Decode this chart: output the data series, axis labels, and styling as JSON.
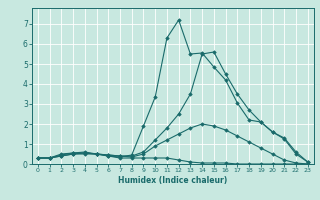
{
  "title": "",
  "xlabel": "Humidex (Indice chaleur)",
  "ylabel": "",
  "bg_color": "#c8e8e0",
  "line_color": "#1a6b6b",
  "grid_color": "#ffffff",
  "xlim": [
    -0.5,
    23.5
  ],
  "ylim": [
    0,
    7.8
  ],
  "xticks": [
    0,
    1,
    2,
    3,
    4,
    5,
    6,
    7,
    8,
    9,
    10,
    11,
    12,
    13,
    14,
    15,
    16,
    17,
    18,
    19,
    20,
    21,
    22,
    23
  ],
  "yticks": [
    0,
    1,
    2,
    3,
    4,
    5,
    6,
    7
  ],
  "lines": [
    {
      "x": [
        0,
        1,
        2,
        3,
        4,
        5,
        6,
        7,
        8,
        9,
        10,
        11,
        12,
        13,
        14,
        15,
        16,
        17,
        18,
        19,
        20,
        21,
        22,
        23
      ],
      "y": [
        0.3,
        0.3,
        0.4,
        0.5,
        0.5,
        0.5,
        0.4,
        0.3,
        0.3,
        0.3,
        0.3,
        0.3,
        0.2,
        0.1,
        0.05,
        0.05,
        0.05,
        0.0,
        0.0,
        0.0,
        0.0,
        0.0,
        0.0,
        0.0
      ]
    },
    {
      "x": [
        0,
        1,
        2,
        3,
        4,
        5,
        6,
        7,
        8,
        9,
        10,
        11,
        12,
        13,
        14,
        15,
        16,
        17,
        18,
        19,
        20,
        21,
        22,
        23
      ],
      "y": [
        0.3,
        0.3,
        0.4,
        0.5,
        0.55,
        0.5,
        0.45,
        0.4,
        0.35,
        0.5,
        0.9,
        1.2,
        1.5,
        1.8,
        2.0,
        1.9,
        1.7,
        1.4,
        1.1,
        0.8,
        0.5,
        0.2,
        0.05,
        0.0
      ]
    },
    {
      "x": [
        0,
        1,
        2,
        3,
        4,
        5,
        6,
        7,
        8,
        9,
        10,
        11,
        12,
        13,
        14,
        15,
        16,
        17,
        18,
        19,
        20,
        21,
        22,
        23
      ],
      "y": [
        0.3,
        0.3,
        0.45,
        0.55,
        0.55,
        0.5,
        0.45,
        0.4,
        0.4,
        0.6,
        1.2,
        1.8,
        2.5,
        3.5,
        5.5,
        5.6,
        4.5,
        3.5,
        2.7,
        2.1,
        1.6,
        1.25,
        0.5,
        0.1
      ]
    },
    {
      "x": [
        0,
        1,
        2,
        3,
        4,
        5,
        6,
        7,
        8,
        9,
        10,
        11,
        12,
        13,
        14,
        15,
        16,
        17,
        18,
        19,
        20,
        21,
        22,
        23
      ],
      "y": [
        0.3,
        0.3,
        0.5,
        0.55,
        0.6,
        0.5,
        0.4,
        0.35,
        0.45,
        1.9,
        3.35,
        6.3,
        7.2,
        5.5,
        5.55,
        4.85,
        4.2,
        3.05,
        2.2,
        2.1,
        1.6,
        1.3,
        0.6,
        0.1
      ]
    }
  ],
  "marker": "D",
  "markersize": 1.8,
  "linewidth": 0.8
}
